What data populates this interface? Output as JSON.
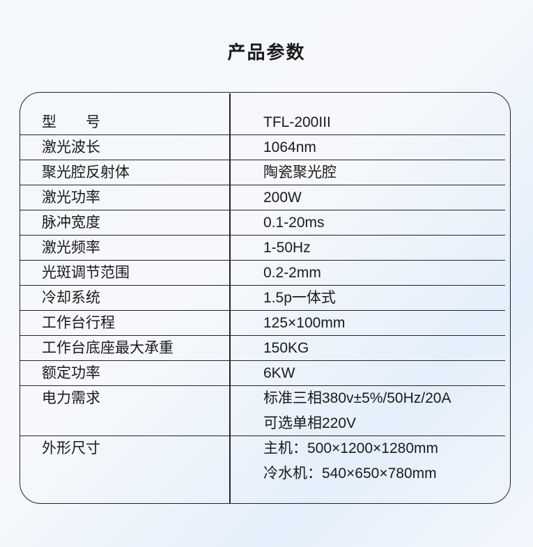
{
  "title": "产品参数",
  "rows": [
    {
      "label": "型　　号",
      "values": [
        "TFL-200III"
      ]
    },
    {
      "label": "激光波长",
      "values": [
        "1064nm"
      ]
    },
    {
      "label": "聚光腔反射体",
      "values": [
        "陶瓷聚光腔"
      ]
    },
    {
      "label": "激光功率",
      "values": [
        "200W"
      ]
    },
    {
      "label": "脉冲宽度",
      "values": [
        "0.1-20ms"
      ]
    },
    {
      "label": "激光频率",
      "values": [
        "1-50Hz"
      ]
    },
    {
      "label": "光斑调节范围",
      "values": [
        "0.2-2mm"
      ]
    },
    {
      "label": "冷却系统",
      "values": [
        "1.5p一体式"
      ]
    },
    {
      "label": "工作台行程",
      "values": [
        "125×100mm"
      ]
    },
    {
      "label": "工作台底座最大承重",
      "values": [
        "150KG"
      ]
    },
    {
      "label": "额定功率",
      "values": [
        "6KW"
      ]
    },
    {
      "label": "电力需求",
      "values": [
        "标准三相380v±5%/50Hz/20A",
        "可选单相220V"
      ]
    },
    {
      "label": "外形尺寸",
      "values": [
        "主机：500×1200×1280mm",
        "冷水机：540×650×780mm"
      ]
    }
  ]
}
